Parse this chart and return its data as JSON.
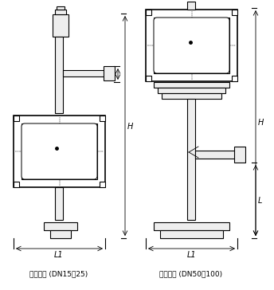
{
  "bg_color": "#ffffff",
  "line_color": "#000000",
  "fig_width": 3.44,
  "fig_height": 3.64,
  "dpi": 100,
  "label1": "底进侧出 (DN15～25)",
  "label2": "底进侧出 (DN50～100)",
  "dim_H": "H",
  "dim_L": "L",
  "dim_L1": "L1"
}
